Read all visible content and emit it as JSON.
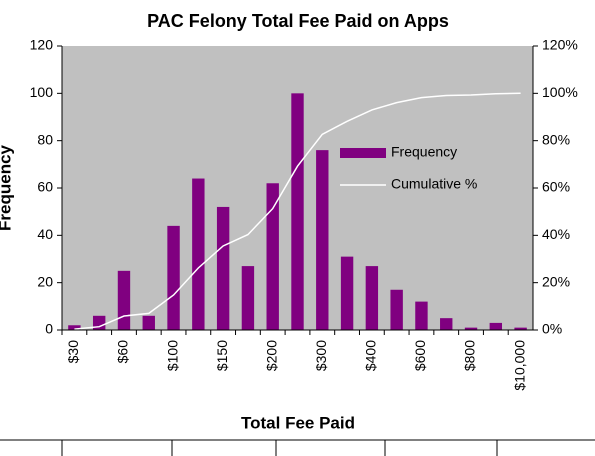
{
  "chart_data": {
    "type": "bar",
    "title": "PAC Felony Total Fee Paid on Apps",
    "x_label": "Total Fee Paid",
    "y_label": "Frequency",
    "categories": [
      "$30",
      null,
      "$60",
      null,
      "$100",
      null,
      "$150",
      null,
      "$200",
      null,
      "$300",
      null,
      "$400",
      null,
      "$600",
      null,
      "$800",
      null,
      "$10,000"
    ],
    "series": [
      {
        "name": "Frequency",
        "color": "#800080",
        "values": [
          2,
          6,
          25,
          6,
          44,
          64,
          52,
          27,
          62,
          100,
          76,
          31,
          27,
          17,
          12,
          5,
          1,
          3,
          1
        ]
      },
      {
        "name": "Cumulative %",
        "color": "#ffffff",
        "axis": "y2",
        "values": [
          0.4,
          1.4,
          5.9,
          7.0,
          14.8,
          26.2,
          35.5,
          40.3,
          51.3,
          69.2,
          82.7,
          88.2,
          93.0,
          96.1,
          98.2,
          99.1,
          99.3,
          99.8,
          100
        ]
      }
    ],
    "ylim": [
      0,
      120
    ],
    "yticks": [
      0,
      20,
      40,
      60,
      80,
      100,
      120
    ],
    "y2lim": [
      0,
      120
    ],
    "y2ticks": [
      {
        "value": 0,
        "label": "0%"
      },
      {
        "value": 20,
        "label": "20%"
      },
      {
        "value": 40,
        "label": "40%"
      },
      {
        "value": 60,
        "label": "60%"
      },
      {
        "value": 80,
        "label": "80%"
      },
      {
        "value": 100,
        "label": "100%"
      },
      {
        "value": 120,
        "label": "120%"
      }
    ],
    "plot_background": "#c0c0c0",
    "legend": "right"
  }
}
